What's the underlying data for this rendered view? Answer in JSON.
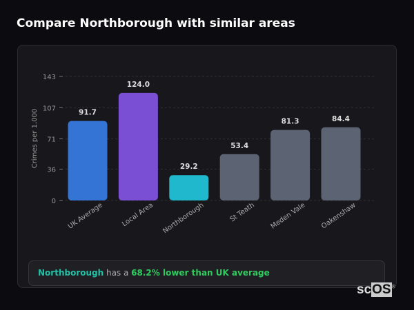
{
  "title": "Compare Northborough with similar areas",
  "chart_data": {
    "type": "bar",
    "ylabel": "Crimes per 1,000",
    "ylim": [
      0,
      143
    ],
    "yticks": [
      0,
      36,
      71,
      107,
      143
    ],
    "grid": true,
    "categories": [
      "UK Average",
      "Local Area",
      "Northborough",
      "St Teath",
      "Meden Vale",
      "Oakenshaw"
    ],
    "values": [
      91.7,
      124.0,
      29.2,
      53.4,
      81.3,
      84.4
    ],
    "labels": [
      "91.7",
      "124.0",
      "29.2",
      "53.4",
      "81.3",
      "84.4"
    ],
    "colors": [
      "#3474d4",
      "#7b4fd4",
      "#1fb8cc",
      "#5c6474",
      "#5c6474",
      "#5c6474"
    ]
  },
  "summary": {
    "area": "Northborough",
    "middle": " has a ",
    "comparison": "68.2% lower than UK average"
  },
  "logo": {
    "text": "scOS"
  }
}
